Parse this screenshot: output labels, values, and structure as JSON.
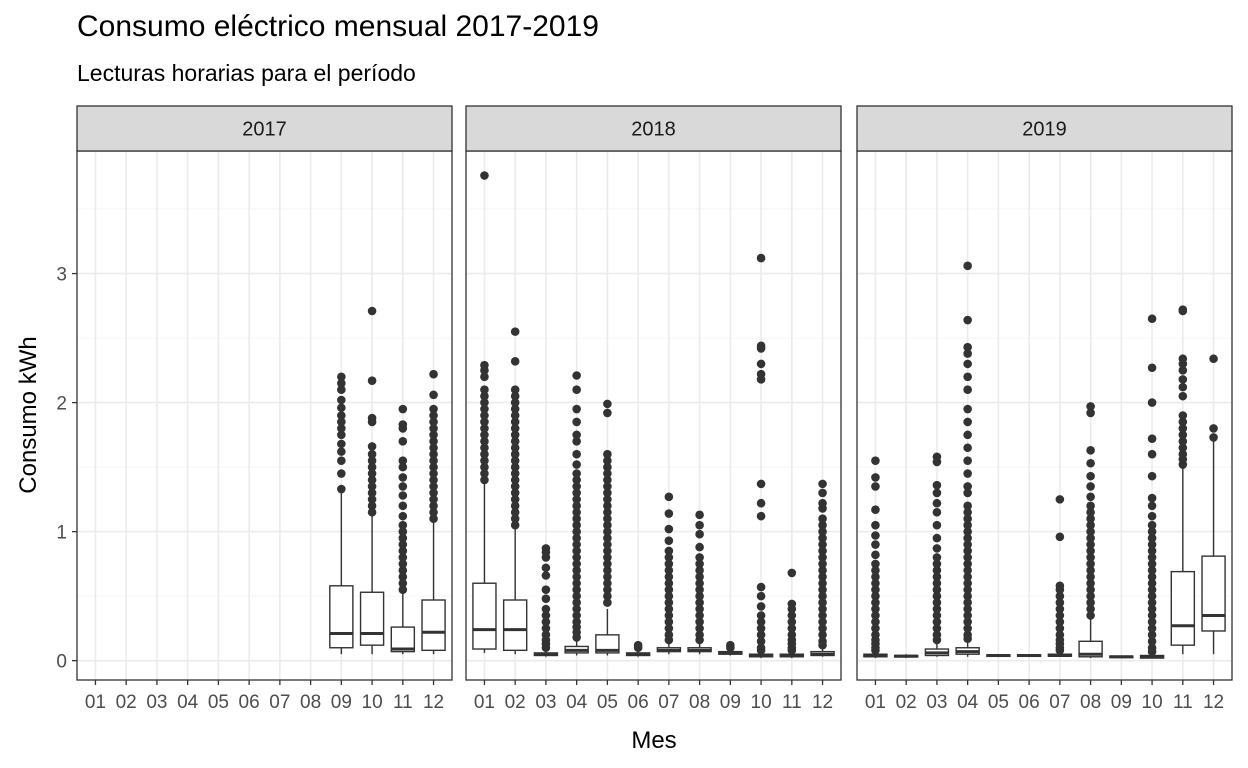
{
  "chart_data": {
    "type": "boxplot",
    "title": "Consumo eléctrico mensual 2017-2019",
    "subtitle": "Lecturas horarias para el período",
    "xlabel": "Mes",
    "ylabel": "Consumo kWh",
    "ylim": [
      -0.15,
      3.95
    ],
    "y_ticks": [
      0,
      1,
      2,
      3
    ],
    "months": [
      "01",
      "02",
      "03",
      "04",
      "05",
      "06",
      "07",
      "08",
      "09",
      "10",
      "11",
      "12"
    ],
    "grid": true,
    "facets": [
      {
        "label": "2017",
        "boxes": [
          {
            "month": "09",
            "q1": 0.1,
            "median": 0.21,
            "q3": 0.58,
            "whisker_low": 0.05,
            "whisker_high": 1.33,
            "outliers": [
              1.33,
              1.45,
              1.55,
              1.62,
              1.68,
              1.75,
              1.8,
              1.85,
              1.9,
              1.96,
              2.02,
              2.1,
              2.15,
              2.2
            ]
          },
          {
            "month": "10",
            "q1": 0.12,
            "median": 0.21,
            "q3": 0.53,
            "whisker_low": 0.05,
            "whisker_high": 1.15,
            "outliers": [
              1.15,
              1.2,
              1.25,
              1.3,
              1.35,
              1.4,
              1.45,
              1.5,
              1.55,
              1.6,
              1.66,
              1.85,
              1.88,
              2.17,
              2.71
            ]
          },
          {
            "month": "11",
            "q1": 0.07,
            "median": 0.09,
            "q3": 0.26,
            "whisker_low": 0.05,
            "whisker_high": 0.52,
            "outliers": [
              0.55,
              0.6,
              0.65,
              0.7,
              0.75,
              0.8,
              0.85,
              0.9,
              0.95,
              1.0,
              1.05,
              1.12,
              1.2,
              1.28,
              1.35,
              1.42,
              1.5,
              1.55,
              1.7,
              1.8,
              1.83,
              1.95
            ]
          },
          {
            "month": "12",
            "q1": 0.08,
            "median": 0.22,
            "q3": 0.47,
            "whisker_low": 0.05,
            "whisker_high": 1.08,
            "outliers": [
              1.1,
              1.15,
              1.2,
              1.25,
              1.3,
              1.35,
              1.4,
              1.45,
              1.5,
              1.55,
              1.6,
              1.65,
              1.7,
              1.75,
              1.8,
              1.85,
              1.9,
              1.95,
              2.06,
              2.22
            ]
          }
        ]
      },
      {
        "label": "2018",
        "boxes": [
          {
            "month": "01",
            "q1": 0.09,
            "median": 0.24,
            "q3": 0.6,
            "whisker_low": 0.06,
            "whisker_high": 1.38,
            "outliers": [
              1.4,
              1.45,
              1.5,
              1.55,
              1.6,
              1.65,
              1.7,
              1.75,
              1.8,
              1.85,
              1.9,
              1.95,
              2.0,
              2.05,
              2.1,
              2.2,
              2.25,
              2.29,
              3.76
            ]
          },
          {
            "month": "02",
            "q1": 0.08,
            "median": 0.24,
            "q3": 0.47,
            "whisker_low": 0.05,
            "whisker_high": 1.05,
            "outliers": [
              1.05,
              1.1,
              1.15,
              1.2,
              1.25,
              1.3,
              1.35,
              1.4,
              1.45,
              1.5,
              1.55,
              1.6,
              1.65,
              1.7,
              1.75,
              1.8,
              1.85,
              1.9,
              1.95,
              2.0,
              2.05,
              2.1,
              2.32,
              2.55
            ]
          },
          {
            "month": "03",
            "q1": 0.04,
            "median": 0.05,
            "q3": 0.06,
            "whisker_low": 0.03,
            "whisker_high": 0.09,
            "outliers": [
              0.1,
              0.13,
              0.16,
              0.2,
              0.25,
              0.3,
              0.35,
              0.4,
              0.48,
              0.55,
              0.66,
              0.72,
              0.8,
              0.84,
              0.87
            ]
          },
          {
            "month": "04",
            "q1": 0.06,
            "median": 0.08,
            "q3": 0.11,
            "whisker_low": 0.04,
            "whisker_high": 0.16,
            "outliers": [
              0.18,
              0.22,
              0.26,
              0.3,
              0.35,
              0.4,
              0.45,
              0.5,
              0.55,
              0.6,
              0.65,
              0.7,
              0.75,
              0.8,
              0.85,
              0.9,
              0.95,
              1.0,
              1.05,
              1.1,
              1.15,
              1.2,
              1.25,
              1.3,
              1.35,
              1.4,
              1.45,
              1.52,
              1.6,
              1.7,
              1.75,
              1.85,
              1.95,
              2.1,
              2.21
            ]
          },
          {
            "month": "05",
            "q1": 0.06,
            "median": 0.08,
            "q3": 0.2,
            "whisker_low": 0.04,
            "whisker_high": 0.4,
            "outliers": [
              0.45,
              0.5,
              0.55,
              0.6,
              0.65,
              0.7,
              0.75,
              0.8,
              0.85,
              0.9,
              0.95,
              1.0,
              1.05,
              1.1,
              1.15,
              1.2,
              1.25,
              1.3,
              1.35,
              1.4,
              1.45,
              1.5,
              1.55,
              1.6,
              1.92,
              1.99
            ]
          },
          {
            "month": "06",
            "q1": 0.04,
            "median": 0.05,
            "q3": 0.06,
            "whisker_low": 0.03,
            "whisker_high": 0.08,
            "outliers": [
              0.1,
              0.12
            ]
          },
          {
            "month": "07",
            "q1": 0.07,
            "median": 0.08,
            "q3": 0.1,
            "whisker_low": 0.05,
            "whisker_high": 0.14,
            "outliers": [
              0.16,
              0.2,
              0.25,
              0.3,
              0.35,
              0.4,
              0.45,
              0.5,
              0.55,
              0.6,
              0.65,
              0.7,
              0.75,
              0.8,
              0.85,
              0.93,
              1.02,
              1.14,
              1.27
            ]
          },
          {
            "month": "08",
            "q1": 0.07,
            "median": 0.08,
            "q3": 0.1,
            "whisker_low": 0.05,
            "whisker_high": 0.14,
            "outliers": [
              0.16,
              0.2,
              0.25,
              0.3,
              0.35,
              0.4,
              0.45,
              0.5,
              0.55,
              0.6,
              0.65,
              0.7,
              0.75,
              0.8,
              0.88,
              0.98,
              1.05,
              1.13
            ]
          },
          {
            "month": "09",
            "q1": 0.05,
            "median": 0.06,
            "q3": 0.07,
            "whisker_low": 0.04,
            "whisker_high": 0.09,
            "outliers": [
              0.1,
              0.12
            ]
          },
          {
            "month": "10",
            "q1": 0.03,
            "median": 0.04,
            "q3": 0.05,
            "whisker_low": 0.02,
            "whisker_high": 0.07,
            "outliers": [
              0.08,
              0.1,
              0.15,
              0.2,
              0.25,
              0.3,
              0.35,
              0.42,
              0.5,
              0.57,
              1.12,
              1.22,
              1.37,
              2.18,
              2.22,
              2.3,
              2.42,
              2.44,
              3.12
            ]
          },
          {
            "month": "11",
            "q1": 0.03,
            "median": 0.04,
            "q3": 0.05,
            "whisker_low": 0.02,
            "whisker_high": 0.07,
            "outliers": [
              0.08,
              0.1,
              0.13,
              0.16,
              0.2,
              0.25,
              0.3,
              0.35,
              0.4,
              0.44,
              0.68
            ]
          },
          {
            "month": "12",
            "q1": 0.04,
            "median": 0.05,
            "q3": 0.07,
            "whisker_low": 0.03,
            "whisker_high": 0.1,
            "outliers": [
              0.12,
              0.15,
              0.2,
              0.25,
              0.3,
              0.35,
              0.4,
              0.45,
              0.5,
              0.55,
              0.6,
              0.65,
              0.7,
              0.75,
              0.8,
              0.85,
              0.9,
              0.95,
              1.0,
              1.05,
              1.1,
              1.18,
              1.22,
              1.3,
              1.37
            ]
          }
        ]
      },
      {
        "label": "2019",
        "boxes": [
          {
            "month": "01",
            "q1": 0.03,
            "median": 0.04,
            "q3": 0.05,
            "whisker_low": 0.02,
            "whisker_high": 0.07,
            "outliers": [
              0.08,
              0.1,
              0.13,
              0.16,
              0.2,
              0.25,
              0.3,
              0.35,
              0.4,
              0.45,
              0.5,
              0.55,
              0.6,
              0.65,
              0.7,
              0.75,
              0.82,
              0.9,
              0.97,
              1.05,
              1.17,
              1.35,
              1.42,
              1.55
            ]
          },
          {
            "month": "02",
            "q1": 0.03,
            "median": 0.035,
            "q3": 0.04,
            "whisker_low": 0.02,
            "whisker_high": 0.05,
            "outliers": []
          },
          {
            "month": "03",
            "q1": 0.04,
            "median": 0.06,
            "q3": 0.09,
            "whisker_low": 0.03,
            "whisker_high": 0.14,
            "outliers": [
              0.16,
              0.2,
              0.25,
              0.3,
              0.35,
              0.4,
              0.45,
              0.5,
              0.55,
              0.6,
              0.65,
              0.7,
              0.75,
              0.8,
              0.87,
              0.95,
              1.05,
              1.15,
              1.22,
              1.3,
              1.36,
              1.54,
              1.58
            ]
          },
          {
            "month": "04",
            "q1": 0.05,
            "median": 0.07,
            "q3": 0.1,
            "whisker_low": 0.03,
            "whisker_high": 0.15,
            "outliers": [
              0.17,
              0.2,
              0.25,
              0.3,
              0.35,
              0.4,
              0.45,
              0.5,
              0.55,
              0.6,
              0.65,
              0.7,
              0.75,
              0.8,
              0.85,
              0.9,
              0.95,
              1.0,
              1.05,
              1.1,
              1.15,
              1.2,
              1.3,
              1.35,
              1.45,
              1.55,
              1.65,
              1.75,
              1.85,
              1.95,
              2.1,
              2.2,
              2.3,
              2.38,
              2.43,
              2.64,
              3.06
            ]
          },
          {
            "month": "05",
            "q1": 0.035,
            "median": 0.04,
            "q3": 0.045,
            "whisker_low": 0.03,
            "whisker_high": 0.05,
            "outliers": []
          },
          {
            "month": "06",
            "q1": 0.035,
            "median": 0.04,
            "q3": 0.045,
            "whisker_low": 0.03,
            "whisker_high": 0.05,
            "outliers": []
          },
          {
            "month": "07",
            "q1": 0.035,
            "median": 0.04,
            "q3": 0.05,
            "whisker_low": 0.03,
            "whisker_high": 0.07,
            "outliers": [
              0.08,
              0.1,
              0.13,
              0.16,
              0.2,
              0.25,
              0.3,
              0.35,
              0.4,
              0.45,
              0.5,
              0.55,
              0.58,
              0.96,
              1.25
            ]
          },
          {
            "month": "08",
            "q1": 0.03,
            "median": 0.05,
            "q3": 0.15,
            "whisker_low": 0.02,
            "whisker_high": 0.32,
            "outliers": [
              0.35,
              0.4,
              0.45,
              0.5,
              0.55,
              0.6,
              0.65,
              0.7,
              0.75,
              0.8,
              0.85,
              0.9,
              0.95,
              1.0,
              1.05,
              1.1,
              1.15,
              1.2,
              1.27,
              1.35,
              1.43,
              1.53,
              1.63,
              1.92,
              1.97
            ]
          },
          {
            "month": "09",
            "q1": 0.025,
            "median": 0.03,
            "q3": 0.035,
            "whisker_low": 0.02,
            "whisker_high": 0.04,
            "outliers": []
          },
          {
            "month": "10",
            "q1": 0.02,
            "median": 0.03,
            "q3": 0.04,
            "whisker_low": 0.02,
            "whisker_high": 0.06,
            "outliers": [
              0.07,
              0.1,
              0.15,
              0.2,
              0.25,
              0.3,
              0.35,
              0.4,
              0.45,
              0.5,
              0.55,
              0.6,
              0.65,
              0.7,
              0.75,
              0.8,
              0.85,
              0.9,
              0.95,
              1.0,
              1.05,
              1.12,
              1.2,
              1.26,
              1.43,
              1.6,
              1.72,
              2.0,
              2.27,
              2.65
            ]
          },
          {
            "month": "11",
            "q1": 0.12,
            "median": 0.27,
            "q3": 0.69,
            "whisker_low": 0.05,
            "whisker_high": 1.5,
            "outliers": [
              1.52,
              1.56,
              1.6,
              1.65,
              1.7,
              1.75,
              1.8,
              1.85,
              1.9,
              2.05,
              2.12,
              2.18,
              2.25,
              2.3,
              2.34,
              2.71,
              2.72
            ]
          },
          {
            "month": "12",
            "q1": 0.23,
            "median": 0.35,
            "q3": 0.81,
            "whisker_low": 0.05,
            "whisker_high": 1.7,
            "outliers": [
              1.73,
              1.8,
              2.34
            ]
          }
        ]
      }
    ]
  },
  "colors": {
    "strip_bg": "#d9d9d9",
    "panel_border": "#333333",
    "grid_major": "#ebebeb",
    "grid_minor": "#f5f5f5",
    "box_line": "#333333",
    "box_fill": "#ffffff",
    "outlier": "#333333",
    "tick_text": "#4d4d4d"
  }
}
